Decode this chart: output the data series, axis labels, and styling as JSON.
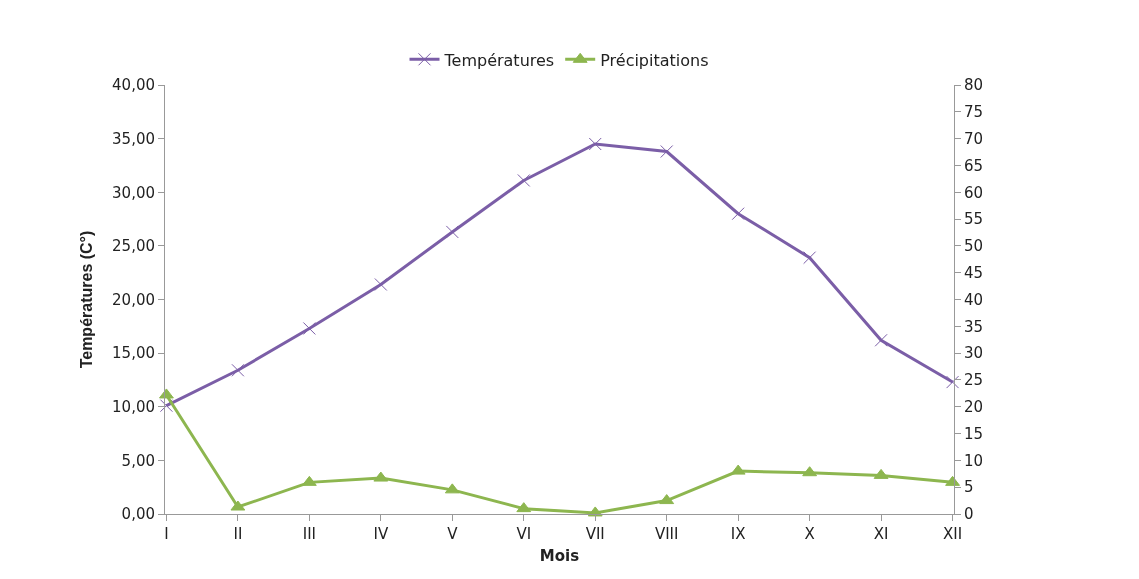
{
  "chart_data": {
    "type": "line",
    "xlabel": "Mois",
    "ylabel": "Températures (C°)",
    "categories": [
      "I",
      "II",
      "III",
      "IV",
      "V",
      "VI",
      "VII",
      "VIII",
      "IX",
      "X",
      "XI",
      "XII"
    ],
    "series": [
      {
        "name": "Températures",
        "color": "#7b5ea7",
        "marker": "cross",
        "values": [
          10.1,
          13.4,
          17.3,
          21.4,
          26.3,
          31.1,
          34.5,
          33.8,
          28.0,
          23.9,
          16.2,
          12.3
        ]
      },
      {
        "name": "Précipitations",
        "color": "#8db64f",
        "marker": "triangle",
        "axis": "y2",
        "values": [
          22.2,
          1.3,
          5.9,
          6.7,
          4.5,
          1.0,
          0.2,
          2.5,
          8.0,
          7.7,
          7.2,
          5.9
        ]
      }
    ],
    "ylim": [
      0,
      40
    ],
    "yticks": [
      {
        "value": 0,
        "label": "0,00"
      },
      {
        "value": 5,
        "label": "5,00"
      },
      {
        "value": 10,
        "label": "10,00"
      },
      {
        "value": 15,
        "label": "15,00"
      },
      {
        "value": 20,
        "label": "20,00"
      },
      {
        "value": 25,
        "label": "25,00"
      },
      {
        "value": 30,
        "label": "30,00"
      },
      {
        "value": 35,
        "label": "35,00"
      },
      {
        "value": 40,
        "label": "40,00"
      }
    ],
    "y2lim": [
      0,
      80
    ],
    "y2ticks": [
      0,
      5,
      10,
      15,
      20,
      25,
      30,
      35,
      40,
      45,
      50,
      55,
      60,
      65,
      70,
      75,
      80
    ],
    "legend": "top",
    "line_style": "solid"
  }
}
